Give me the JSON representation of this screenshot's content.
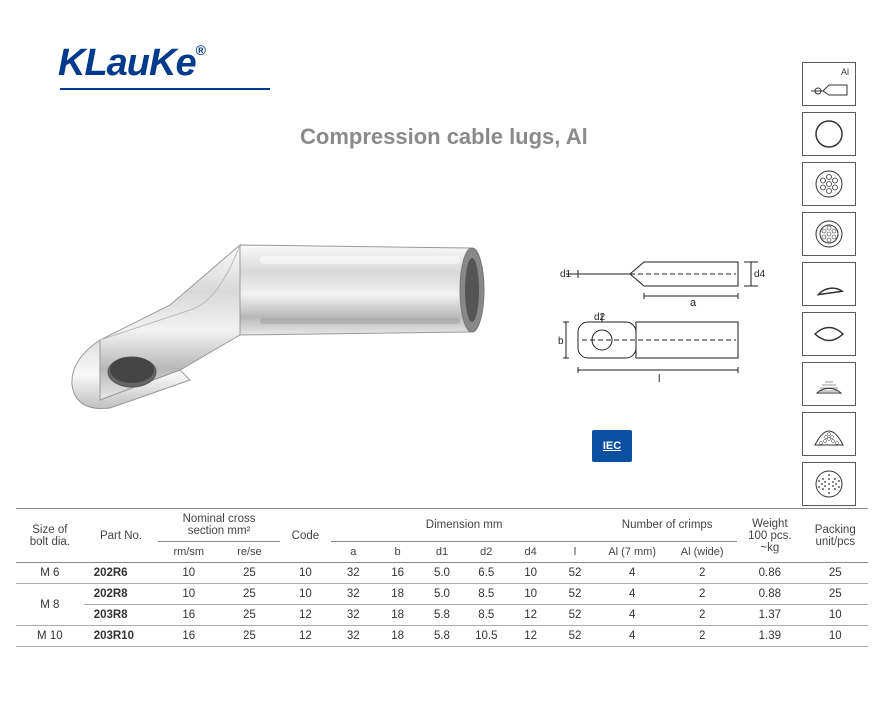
{
  "brand": {
    "name": "KLauKe",
    "reg": "®"
  },
  "title": "Compression cable lugs, Al",
  "icons": [
    {
      "name": "al-lug",
      "label": "Al"
    },
    {
      "name": "circle"
    },
    {
      "name": "stranded"
    },
    {
      "name": "stranded-ring"
    },
    {
      "name": "sector-solid"
    },
    {
      "name": "oval"
    },
    {
      "name": "sector-dense"
    },
    {
      "name": "fan-strand"
    },
    {
      "name": "fine-strand"
    }
  ],
  "iec": "IEC",
  "diagram_labels": {
    "a": "a",
    "b": "b",
    "d1": "d1",
    "d2": "d2",
    "d4": "d4",
    "l": "l"
  },
  "table": {
    "headers": {
      "bolt": "Size of\nbolt dia.",
      "part": "Part No.",
      "nominal_group": "Nominal cross section mm²",
      "rm_sm": "rm/sm",
      "re_se": "re/se",
      "code": "Code",
      "dim_group": "Dimension mm",
      "a": "a",
      "b": "b",
      "d1": "d1",
      "d2": "d2",
      "d4": "d4",
      "l": "l",
      "crimps_group": "Number of crimps",
      "al7": "Al (7 mm)",
      "alw": "Al (wide)",
      "weight": "Weight\n100 pcs.\n~kg",
      "packing": "Packing\nunit/pcs"
    },
    "rows": [
      {
        "bolt": "M 6",
        "bolt_span": 1,
        "part": "202R6",
        "rm": "10",
        "re": "25",
        "code": "10",
        "a": "32",
        "b": "16",
        "d1": "5.0",
        "d2": "6.5",
        "d4": "10",
        "l": "52",
        "al7": "4",
        "alw": "2",
        "wt": "0.86",
        "pk": "25"
      },
      {
        "bolt": "M 8",
        "bolt_span": 2,
        "part": "202R8",
        "rm": "10",
        "re": "25",
        "code": "10",
        "a": "32",
        "b": "18",
        "d1": "5.0",
        "d2": "8.5",
        "d4": "10",
        "l": "52",
        "al7": "4",
        "alw": "2",
        "wt": "0.88",
        "pk": "25"
      },
      {
        "bolt": "",
        "bolt_span": 0,
        "part": "203R8",
        "rm": "16",
        "re": "25",
        "code": "12",
        "a": "32",
        "b": "18",
        "d1": "5.8",
        "d2": "8.5",
        "d4": "12",
        "l": "52",
        "al7": "4",
        "alw": "2",
        "wt": "1.37",
        "pk": "10"
      },
      {
        "bolt": "M 10",
        "bolt_span": 1,
        "part": "203R10",
        "rm": "16",
        "re": "25",
        "code": "12",
        "a": "32",
        "b": "18",
        "d1": "5.8",
        "d2": "10.5",
        "d4": "12",
        "l": "52",
        "al7": "4",
        "alw": "2",
        "wt": "1.39",
        "pk": "10"
      }
    ]
  },
  "colors": {
    "brand": "#003a8c",
    "title": "#8a8a8a",
    "border": "#5a5a5a",
    "iec_bg": "#0a4fa0"
  }
}
